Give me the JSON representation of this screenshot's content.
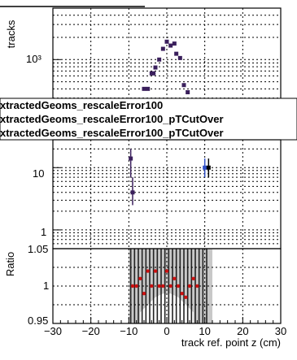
{
  "chart_data": [
    {
      "type": "scatter",
      "name": "top-panel",
      "ylabel": "tracks",
      "y_scale": "log",
      "y_tick_labels": [
        "10³"
      ],
      "grid": true,
      "colors": {
        "marker": "#3a1f5c"
      },
      "series": [
        {
          "points": [
            [
              -6,
              400
            ],
            [
              -5,
              400
            ],
            [
              -4,
              650
            ],
            [
              -3.5,
              650
            ],
            [
              -3,
              780
            ],
            [
              -2,
              1000
            ],
            [
              -1,
              1400
            ],
            [
              0,
              1750
            ],
            [
              1,
              1550
            ],
            [
              2,
              1650
            ],
            [
              2.5,
              1200
            ],
            [
              3.5,
              1050
            ],
            [
              4.5,
              450
            ],
            [
              5.5,
              360
            ]
          ]
        }
      ]
    },
    {
      "type": "scatter",
      "name": "middle-panel",
      "y_scale": "log",
      "y_tick_labels": [
        "10",
        "1"
      ],
      "grid": true,
      "legend": {
        "placement": "top",
        "entries": [
          "xtractedGeoms_rescaleError100",
          "xtractedGeoms_rescaleError100_pTCutOver",
          "xtractedGeoms_rescaleError100_pTCutOver"
        ]
      },
      "colors": {
        "series_a": "#3a1f5c",
        "series_b": "#3050c8",
        "series_c": "#000000"
      },
      "series": [
        {
          "points": [
            [
              -9.5,
              14,
              7,
              20
            ],
            [
              -9,
              4,
              2.5,
              7
            ]
          ],
          "color": "#3a1f5c"
        },
        {
          "points": [
            [
              10,
              10,
              7,
              14
            ]
          ],
          "color": "#3050c8"
        },
        {
          "points": [
            [
              11,
              10,
              7,
              14
            ]
          ],
          "color": "#000000"
        }
      ]
    },
    {
      "type": "scatter",
      "name": "ratio-panel",
      "ylabel": "Ratio",
      "xlabel": "track ref. point z (cm)",
      "xlim": [
        -30,
        30
      ],
      "ylim": [
        0.95,
        1.05
      ],
      "x_ticks": [
        -30,
        -20,
        -10,
        0,
        10,
        20,
        30
      ],
      "x_tick_labels": [
        "−30",
        "−20",
        "−10",
        "0",
        "10",
        "20",
        "30"
      ],
      "y_tick_labels": [
        "1.05",
        "1",
        "0.95"
      ],
      "grid": true,
      "colors": {
        "marker": "#cc1111",
        "band": "#c8c8c8"
      },
      "series": [
        {
          "points": [
            [
              -9,
              1.0
            ],
            [
              -8,
              1.0
            ],
            [
              -7,
              1.01
            ],
            [
              -6,
              0.99
            ],
            [
              -5,
              1.02
            ],
            [
              -4,
              1.0
            ],
            [
              -3,
              1.02
            ],
            [
              -2,
              1.0
            ],
            [
              -1,
              1.0
            ],
            [
              0,
              1.02
            ],
            [
              1,
              1.0
            ],
            [
              2,
              1.01
            ],
            [
              3,
              1.0
            ],
            [
              4,
              0.99
            ],
            [
              5,
              0.985
            ],
            [
              6,
              1.0
            ],
            [
              7,
              1.01
            ],
            [
              8,
              1.0
            ]
          ]
        }
      ]
    }
  ]
}
